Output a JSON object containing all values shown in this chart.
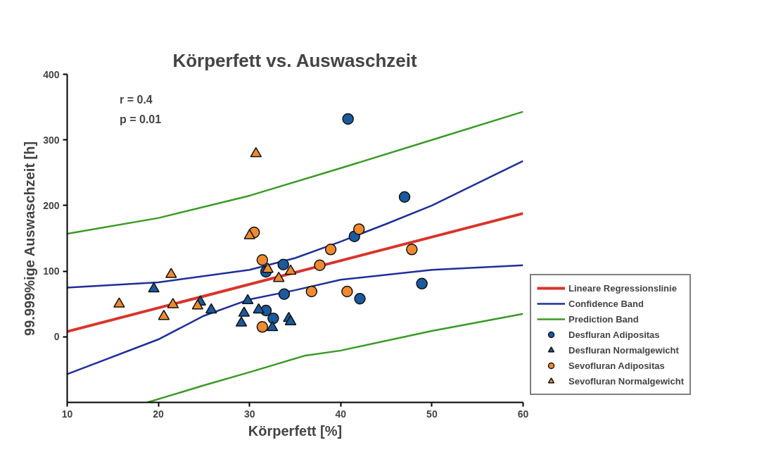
{
  "chart_data": {
    "type": "scatter",
    "title": "Körperfett vs. Auswaschzeit",
    "xlabel": "Körperfett [%]",
    "ylabel": "99.999%ige Auswaschzeit [h]",
    "annotations": [
      "r = 0.4",
      "p = 0.01"
    ],
    "xlim": [
      10,
      60
    ],
    "xticks": [
      10,
      20,
      30,
      40,
      50,
      60
    ],
    "ylim": [
      -100,
      400
    ],
    "yticks": [
      0,
      100,
      200,
      300,
      400
    ],
    "grid": false,
    "legend": "bottom right",
    "series": [
      {
        "name": "Lineare Regressionslinie",
        "type": "line",
        "color": "#d9342b",
        "x": [
          10,
          60
        ],
        "values": [
          8,
          188
        ]
      },
      {
        "name": "Confidence Band",
        "type": "line",
        "color": "#1f2f99",
        "x": [
          10,
          20,
          30,
          35,
          40,
          45,
          50,
          60
        ],
        "values": [
          75,
          83,
          102,
          120,
          145,
          172,
          200,
          268
        ]
      },
      {
        "type": "line",
        "color": "#1f2f99",
        "x": [
          10,
          20,
          25,
          30,
          35,
          40,
          50,
          60
        ],
        "values": [
          -57,
          -4,
          32,
          57,
          71,
          87,
          102,
          109
        ]
      },
      {
        "name": "Prediction Band",
        "type": "line",
        "color": "#3a9a26",
        "x": [
          10,
          20,
          30,
          40,
          50,
          60
        ],
        "values": [
          157,
          181,
          215,
          257,
          300,
          343
        ]
      },
      {
        "type": "line",
        "color": "#3a9a26",
        "x": [
          18.8,
          25,
          30,
          36,
          40,
          50,
          60
        ],
        "values": [
          -100,
          -74,
          -54,
          -29,
          -21,
          9,
          35
        ]
      },
      {
        "name": "Desfluran Adipositas",
        "marker": "circle",
        "color": "#1a5a9e",
        "x": [
          40.8,
          47.0,
          41.5,
          33.7,
          31.8,
          33.8,
          42.1,
          48.9,
          31.8,
          32.6
        ],
        "values": [
          332,
          213,
          153,
          110,
          99,
          65,
          58,
          81,
          40,
          28
        ]
      },
      {
        "name": "Desfluran Normalgewicht",
        "marker": "triangle",
        "color": "#1a5a9e",
        "x": [
          19.5,
          24.6,
          25.8,
          29.8,
          29.4,
          31.0,
          29.1,
          32.5,
          34.3,
          34.5
        ],
        "values": [
          73,
          53,
          41,
          55,
          36,
          41,
          21,
          14,
          28,
          23
        ]
      },
      {
        "name": "Sevofluran Adipositas",
        "marker": "circle",
        "color": "#f08a30",
        "x": [
          30.5,
          31.4,
          42.0,
          38.9,
          47.8,
          37.7,
          36.8,
          40.7,
          31.4
        ],
        "values": [
          159,
          117,
          164,
          133,
          133,
          109,
          69,
          69,
          15
        ]
      },
      {
        "name": "Sevofluran Normalgewicht",
        "marker": "triangle",
        "color": "#f08a30",
        "x": [
          30.7,
          30.0,
          32.0,
          34.5,
          33.2,
          21.4,
          15.7,
          21.6,
          24.3,
          20.6
        ],
        "values": [
          279,
          154,
          103,
          100,
          89,
          95,
          50,
          49,
          47,
          31
        ]
      }
    ]
  }
}
